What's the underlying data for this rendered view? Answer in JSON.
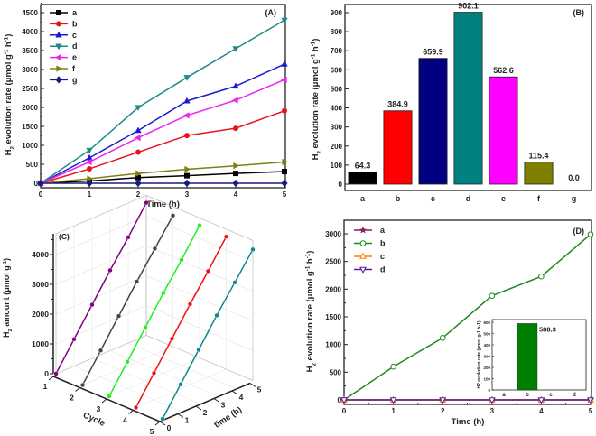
{
  "chart_data": [
    {
      "panel": "(A)",
      "type": "line",
      "xlabel": "Time (h)",
      "ylabel": "H2 evolution rate (μmol g-1 h-1)",
      "ylabel_main": "H",
      "ylabel_sub": "2",
      "ylabel_rest": " evolution rate (μmol g",
      "ylabel_sup1": "-1",
      "ylabel_mid": " h",
      "ylabel_sup2": "-1",
      "ylabel_end": ")",
      "xlim": [
        0,
        5
      ],
      "ylim": [
        0,
        4700
      ],
      "xticks": [
        "0",
        "1",
        "2",
        "3",
        "4",
        "5"
      ],
      "yticks": [
        "0",
        "500",
        "1000",
        "1500",
        "2000",
        "2500",
        "3000",
        "3500",
        "4000",
        "4500"
      ],
      "legend": "top-left",
      "x": [
        0,
        1,
        2,
        3,
        4,
        5
      ],
      "series": [
        {
          "name": "a",
          "color": "#000000",
          "marker": "square",
          "values": [
            0,
            60,
            150,
            200,
            260,
            310
          ]
        },
        {
          "name": "b",
          "color": "#e8141b",
          "marker": "circle",
          "values": [
            0,
            380,
            820,
            1260,
            1450,
            1910
          ]
        },
        {
          "name": "c",
          "color": "#1a1ad0",
          "marker": "triangle-up",
          "values": [
            0,
            670,
            1390,
            2170,
            2560,
            3140
          ]
        },
        {
          "name": "d",
          "color": "#1f8a8a",
          "marker": "triangle-down",
          "values": [
            0,
            870,
            2000,
            2790,
            3550,
            4300
          ]
        },
        {
          "name": "e",
          "color": "#ee22ee",
          "marker": "triangle-left",
          "values": [
            0,
            560,
            1200,
            1790,
            2190,
            2730
          ]
        },
        {
          "name": "f",
          "color": "#808010",
          "marker": "triangle-right",
          "values": [
            0,
            120,
            260,
            370,
            460,
            560
          ]
        },
        {
          "name": "g",
          "color": "#1a1a80",
          "marker": "diamond",
          "values": [
            0,
            0,
            0,
            0,
            0,
            0
          ]
        }
      ]
    },
    {
      "panel": "(B)",
      "type": "bar",
      "ylabel_main": "H",
      "ylabel_sub": "2",
      "ylabel_rest": " evolution rate (μmol g",
      "ylabel_sup1": "-1",
      "ylabel_mid": " h",
      "ylabel_sup2": "-1",
      "ylabel_end": ")",
      "ylim": [
        0,
        950
      ],
      "yticks": [
        "0",
        "100",
        "200",
        "300",
        "400",
        "500",
        "600",
        "700",
        "800",
        "900"
      ],
      "categories": [
        "a",
        "b",
        "c",
        "d",
        "e",
        "f",
        "g"
      ],
      "values": [
        64.3,
        384.9,
        659.9,
        902.1,
        562.6,
        115.4,
        0.0
      ],
      "labels": [
        "64.3",
        "384.9",
        "659.9",
        "902.1",
        "562.6",
        "115.4",
        "0.0"
      ],
      "colors": [
        "#000000",
        "#ff0000",
        "#000080",
        "#008080",
        "#ff00ff",
        "#808000",
        "#000080"
      ]
    },
    {
      "panel": "(C)",
      "type": "line3d",
      "zlabel_main": "H",
      "zlabel_sub": "2",
      "zlabel_rest": " amount (μmol g",
      "zlabel_sup": "-1",
      "zlabel_end": ")",
      "xlabel": "Cycle",
      "ylabel": "time (h)",
      "zticks": [
        "0",
        "1000",
        "2000",
        "3000",
        "4000"
      ],
      "cycle_ticks": [
        "1",
        "2",
        "3",
        "4",
        "5"
      ],
      "time_ticks": [
        "0",
        "1",
        "2",
        "3",
        "4",
        "5"
      ],
      "time": [
        0,
        1,
        2,
        3,
        4,
        5
      ],
      "series": [
        {
          "cycle": 1,
          "color": "#800080",
          "values": [
            0,
            900,
            1800,
            2700,
            3550,
            4450
          ]
        },
        {
          "cycle": 2,
          "color": "#444444",
          "values": [
            0,
            900,
            1800,
            2700,
            3550,
            4400
          ]
        },
        {
          "cycle": 3,
          "color": "#22ee22",
          "values": [
            0,
            900,
            1800,
            2700,
            3550,
            4450
          ]
        },
        {
          "cycle": 4,
          "color": "#ee1111",
          "values": [
            0,
            900,
            1800,
            2700,
            3550,
            4450
          ]
        },
        {
          "cycle": 5,
          "color": "#108888",
          "values": [
            0,
            900,
            1800,
            2700,
            3550,
            4400
          ]
        }
      ]
    },
    {
      "panel": "(D)",
      "type": "line",
      "xlabel": "Time (h)",
      "ylabel_main": "H",
      "ylabel_sub": "2",
      "ylabel_rest": " evolution rate (μmol g",
      "ylabel_sup1": "-1",
      "ylabel_mid": " h",
      "ylabel_sup2": "-1",
      "ylabel_end": ")",
      "xlim": [
        0,
        5
      ],
      "ylim": [
        -80,
        3200
      ],
      "xticks": [
        "0",
        "1",
        "2",
        "3",
        "4",
        "5"
      ],
      "yticks": [
        "0",
        "500",
        "1000",
        "1500",
        "2000",
        "2500",
        "3000"
      ],
      "legend": "top-left",
      "x": [
        0,
        1,
        2,
        3,
        4,
        5
      ],
      "series": [
        {
          "name": "a",
          "color": "#8b1a5a",
          "marker": "star",
          "values": [
            0,
            0,
            0,
            0,
            0,
            0
          ]
        },
        {
          "name": "b",
          "color": "#1e8a1e",
          "marker": "circle-open",
          "values": [
            0,
            600,
            1120,
            1880,
            2230,
            2990
          ]
        },
        {
          "name": "c",
          "color": "#ff8000",
          "marker": "triangle-up-open",
          "values": [
            0,
            0,
            0,
            0,
            0,
            0
          ]
        },
        {
          "name": "d",
          "color": "#5a1a9a",
          "marker": "triangle-down-open",
          "values": [
            0,
            0,
            0,
            0,
            0,
            0
          ]
        }
      ],
      "inset": {
        "type": "bar",
        "ylabel": "H2 evolution rate (μmol g-1 h-1)",
        "categories": [
          "a",
          "b",
          "c",
          "d"
        ],
        "values": [
          0,
          588.3,
          0,
          0
        ],
        "label": "588.3",
        "ylim": [
          0,
          620
        ],
        "yticks": [
          "0",
          "100",
          "200",
          "300",
          "400",
          "500",
          "600"
        ],
        "color": "#008000"
      }
    }
  ]
}
